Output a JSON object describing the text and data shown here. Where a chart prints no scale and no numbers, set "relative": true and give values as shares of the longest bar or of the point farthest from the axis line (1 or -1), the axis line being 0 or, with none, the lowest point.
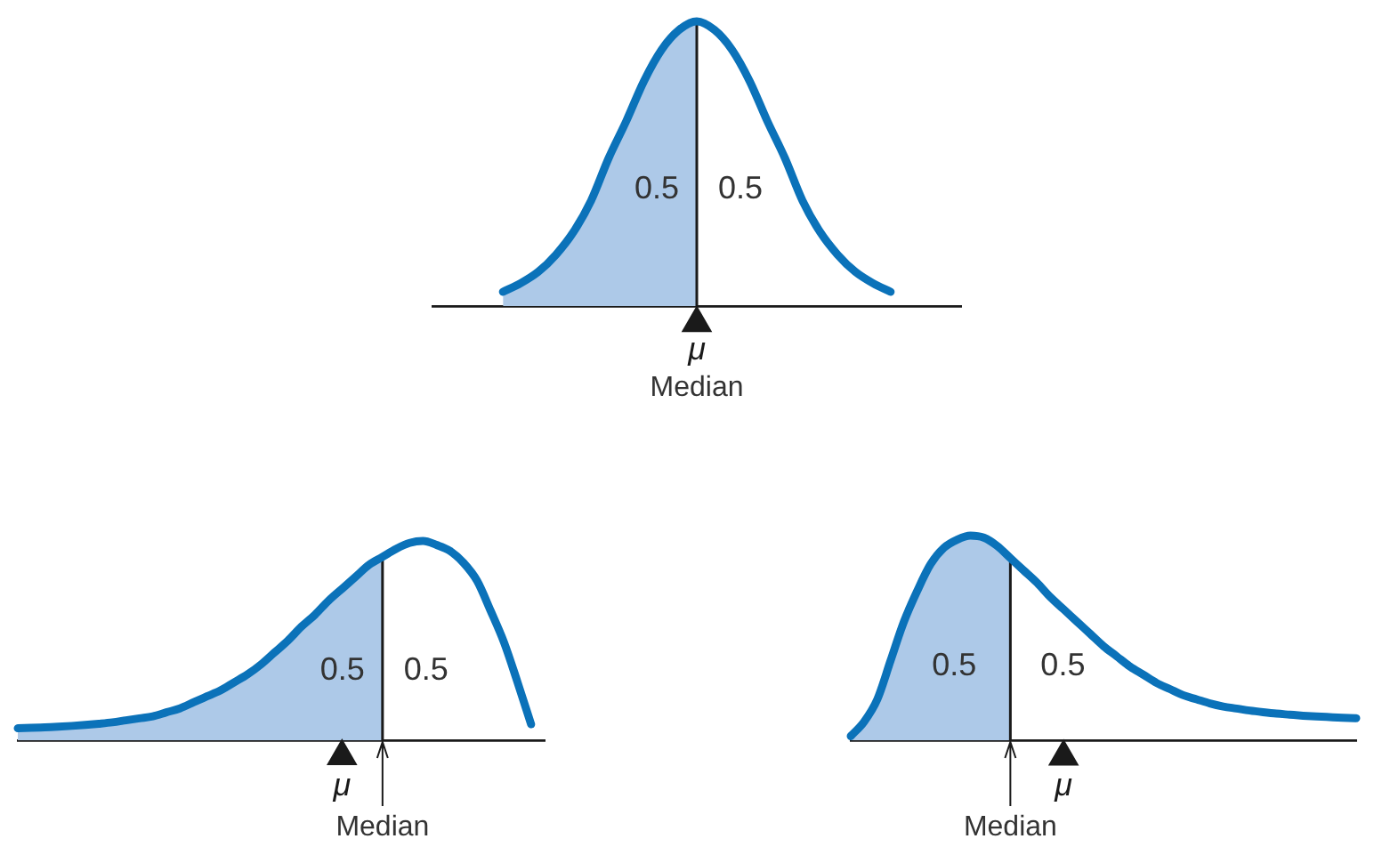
{
  "chart_data": [
    {
      "type": "line",
      "relative": true,
      "categories": [
        null,
        null,
        null,
        null,
        null,
        null,
        null,
        null,
        null,
        null,
        null,
        null,
        null,
        null,
        null,
        null,
        null,
        null,
        null,
        null,
        null,
        null,
        null,
        null,
        null,
        null,
        null,
        null,
        null,
        null,
        null
      ],
      "series": [
        {
          "type": "area",
          "color": "#adc9e8",
          "values": [
            null,
            null,
            null,
            null,
            0.05,
            0.08,
            0.12,
            0.18,
            0.26,
            0.37,
            0.52,
            0.65,
            0.79,
            0.9,
            0.97,
            1,
            null,
            null,
            null,
            null,
            null,
            null,
            null,
            null,
            null,
            null,
            null,
            null,
            null,
            null,
            null
          ]
        },
        {
          "color": "#0b72b9",
          "values": [
            null,
            null,
            null,
            null,
            0.05,
            0.08,
            0.12,
            0.18,
            0.26,
            0.37,
            0.52,
            0.65,
            0.79,
            0.9,
            0.97,
            1,
            0.97,
            0.9,
            0.79,
            0.65,
            0.52,
            0.37,
            0.26,
            0.18,
            0.12,
            0.08,
            0.05,
            null,
            null,
            null,
            null
          ]
        },
        {
          "name": "μ",
          "color": "#1a1a1a",
          "marker": "triangle",
          "values": [
            null,
            null,
            null,
            null,
            null,
            null,
            null,
            null,
            null,
            null,
            null,
            null,
            null,
            null,
            null,
            -0.06,
            null,
            null,
            null,
            null,
            null,
            null,
            null,
            null,
            null,
            null,
            null,
            null,
            null,
            null,
            null
          ]
        }
      ],
      "annotations": [
        "0.5",
        "0.5",
        "Median"
      ]
    },
    {
      "type": "line",
      "relative": true,
      "categories": [
        null,
        null,
        null,
        null,
        null,
        null,
        null,
        null,
        null,
        null,
        null,
        null,
        null,
        null,
        null,
        null,
        null,
        null,
        null,
        null,
        null,
        null,
        null,
        null,
        null,
        null,
        null,
        null,
        null,
        null,
        null,
        null,
        null,
        null,
        null,
        null,
        null,
        null,
        null,
        null
      ],
      "series": [
        {
          "type": "area",
          "color": "#adc9e8",
          "values": [
            0.06,
            0.062,
            0.065,
            0.068,
            0.072,
            0.077,
            0.083,
            0.09,
            0.1,
            0.11,
            0.12,
            0.14,
            0.16,
            0.19,
            0.22,
            0.25,
            0.29,
            0.33,
            0.38,
            0.44,
            0.5,
            0.57,
            0.63,
            0.7,
            0.76,
            0.82,
            0.88,
            0.92,
            null,
            null,
            null,
            null,
            null,
            null,
            null,
            null,
            null,
            null,
            null,
            null
          ]
        },
        {
          "color": "#0b72b9",
          "values": [
            0.06,
            0.062,
            0.065,
            0.068,
            0.072,
            0.077,
            0.083,
            0.09,
            0.1,
            0.11,
            0.12,
            0.14,
            0.16,
            0.19,
            0.22,
            0.25,
            0.29,
            0.33,
            0.38,
            0.44,
            0.5,
            0.57,
            0.63,
            0.7,
            0.76,
            0.82,
            0.88,
            0.92,
            0.96,
            0.99,
            1,
            0.98,
            0.95,
            0.89,
            0.8,
            0.65,
            0.49,
            0.29,
            0.08,
            null
          ]
        },
        {
          "name": "μ",
          "color": "#1a1a1a",
          "marker": "triangle",
          "values": [
            null,
            null,
            null,
            null,
            null,
            null,
            null,
            null,
            null,
            null,
            null,
            null,
            null,
            null,
            null,
            null,
            null,
            null,
            null,
            null,
            null,
            null,
            null,
            null,
            -0.08,
            null,
            null,
            null,
            null,
            null,
            null,
            null,
            null,
            null,
            null,
            null,
            null,
            null,
            null,
            null
          ]
        }
      ],
      "annotations": [
        "0.5",
        "0.5",
        "Median"
      ]
    },
    {
      "type": "line",
      "relative": true,
      "categories": [
        null,
        null,
        null,
        null,
        null,
        null,
        null,
        null,
        null,
        null,
        null,
        null,
        null,
        null,
        null,
        null,
        null,
        null,
        null,
        null,
        null,
        null,
        null,
        null,
        null,
        null,
        null,
        null,
        null,
        null,
        null,
        null,
        null,
        null,
        null,
        null,
        null,
        null,
        null
      ],
      "series": [
        {
          "type": "area",
          "color": "#adc9e8",
          "values": [
            0.02,
            0.09,
            0.2,
            0.39,
            0.58,
            0.73,
            0.86,
            0.94,
            0.98,
            1,
            0.99,
            0.95,
            0.89,
            null,
            null,
            null,
            null,
            null,
            null,
            null,
            null,
            null,
            null,
            null,
            null,
            null,
            null,
            null,
            null,
            null,
            null,
            null,
            null,
            null,
            null,
            null,
            null,
            null,
            null
          ]
        },
        {
          "color": "#0b72b9",
          "values": [
            0.02,
            0.09,
            0.2,
            0.39,
            0.58,
            0.73,
            0.86,
            0.94,
            0.98,
            1,
            0.99,
            0.95,
            0.89,
            0.83,
            0.77,
            0.7,
            0.64,
            0.58,
            0.52,
            0.46,
            0.41,
            0.36,
            0.32,
            0.28,
            0.25,
            0.22,
            0.2,
            0.18,
            0.165,
            0.155,
            0.145,
            0.137,
            0.13,
            0.125,
            0.12,
            0.116,
            0.113,
            0.11,
            0.108
          ]
        },
        {
          "name": "μ",
          "color": "#1a1a1a",
          "marker": "triangle",
          "values": [
            null,
            null,
            null,
            null,
            null,
            null,
            null,
            null,
            null,
            null,
            null,
            null,
            null,
            null,
            null,
            null,
            -0.08,
            null,
            null,
            null,
            null,
            null,
            null,
            null,
            null,
            null,
            null,
            null,
            null,
            null,
            null,
            null,
            null,
            null,
            null,
            null,
            null,
            null,
            null
          ]
        }
      ],
      "annotations": [
        "0.5",
        "0.5",
        "Median"
      ]
    }
  ]
}
